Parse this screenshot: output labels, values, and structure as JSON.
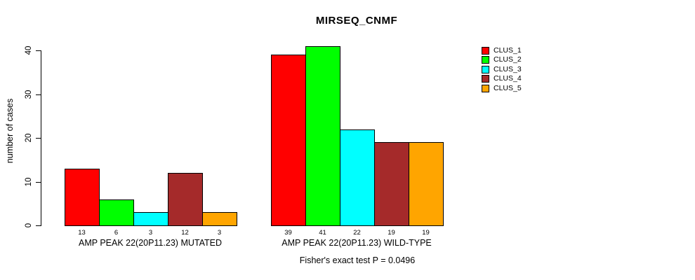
{
  "title": "MIRSEQ_CNMF",
  "subtitle": "Fisher's exact test P = 0.0496",
  "chart_data": {
    "type": "bar",
    "title": "MIRSEQ_CNMF",
    "xlabel": "",
    "ylabel": "number of cases",
    "ylim": [
      0,
      40
    ],
    "yticks": [
      0,
      10,
      20,
      30,
      40
    ],
    "grid": false,
    "bar_value_labels_shown": true,
    "annotation": "Fisher's exact test P = 0.0496",
    "series_names": [
      "CLUS_1",
      "CLUS_2",
      "CLUS_3",
      "CLUS_4",
      "CLUS_5"
    ],
    "series_colors": [
      "#FF0000",
      "#00FF00",
      "#00FFFF",
      "#A52A2A",
      "#FFA500"
    ],
    "groups": [
      {
        "label": "AMP PEAK 22(20P11.23) MUTATED",
        "values": [
          13,
          6,
          3,
          12,
          3
        ]
      },
      {
        "label": "AMP PEAK 22(20P11.23) WILD-TYPE",
        "values": [
          39,
          41,
          22,
          19,
          19
        ]
      }
    ],
    "legend": {
      "position": "top-right",
      "entries": [
        {
          "label": "CLUS_1",
          "color": "#FF0000"
        },
        {
          "label": "CLUS_2",
          "color": "#00FF00"
        },
        {
          "label": "CLUS_3",
          "color": "#00FFFF"
        },
        {
          "label": "CLUS_4",
          "color": "#A52A2A"
        },
        {
          "label": "CLUS_5",
          "color": "#FFA500"
        }
      ]
    }
  }
}
